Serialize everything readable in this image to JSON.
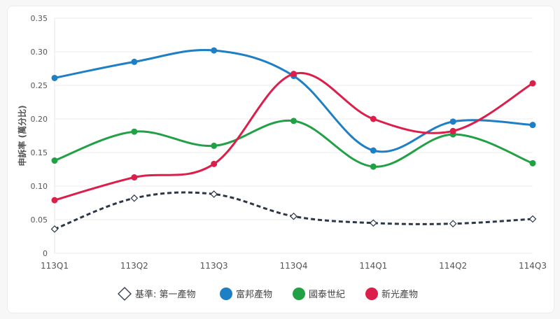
{
  "chart_data": {
    "type": "line",
    "title": "",
    "xlabel": "",
    "ylabel": "申訴率 (萬分比)",
    "ylim": [
      0,
      0.35
    ],
    "yticks": [
      "0",
      "0.05",
      "0.10",
      "0.15",
      "0.20",
      "0.25",
      "0.30",
      "0.35"
    ],
    "categories": [
      "113Q1",
      "113Q2",
      "113Q3",
      "113Q4",
      "114Q1",
      "114Q2",
      "114Q3"
    ],
    "legend_position": "bottom",
    "grid": true,
    "series": [
      {
        "name": "基準: 第一產物",
        "color": "#2d3748",
        "style": "dashed",
        "marker": "diamond",
        "values": [
          0.036,
          0.082,
          0.088,
          0.055,
          0.045,
          0.044,
          0.051
        ]
      },
      {
        "name": "富邦產物",
        "color": "#1f7fc4",
        "style": "solid",
        "marker": "circle",
        "values": [
          0.261,
          0.285,
          0.302,
          0.264,
          0.153,
          0.196,
          0.191
        ]
      },
      {
        "name": "國泰世紀",
        "color": "#22a045",
        "style": "solid",
        "marker": "circle",
        "values": [
          0.138,
          0.181,
          0.16,
          0.197,
          0.129,
          0.177,
          0.134
        ]
      },
      {
        "name": "新光產物",
        "color": "#dc1f4a",
        "style": "solid",
        "marker": "circle",
        "values": [
          0.079,
          0.113,
          0.133,
          0.267,
          0.2,
          0.182,
          0.253
        ]
      }
    ]
  }
}
